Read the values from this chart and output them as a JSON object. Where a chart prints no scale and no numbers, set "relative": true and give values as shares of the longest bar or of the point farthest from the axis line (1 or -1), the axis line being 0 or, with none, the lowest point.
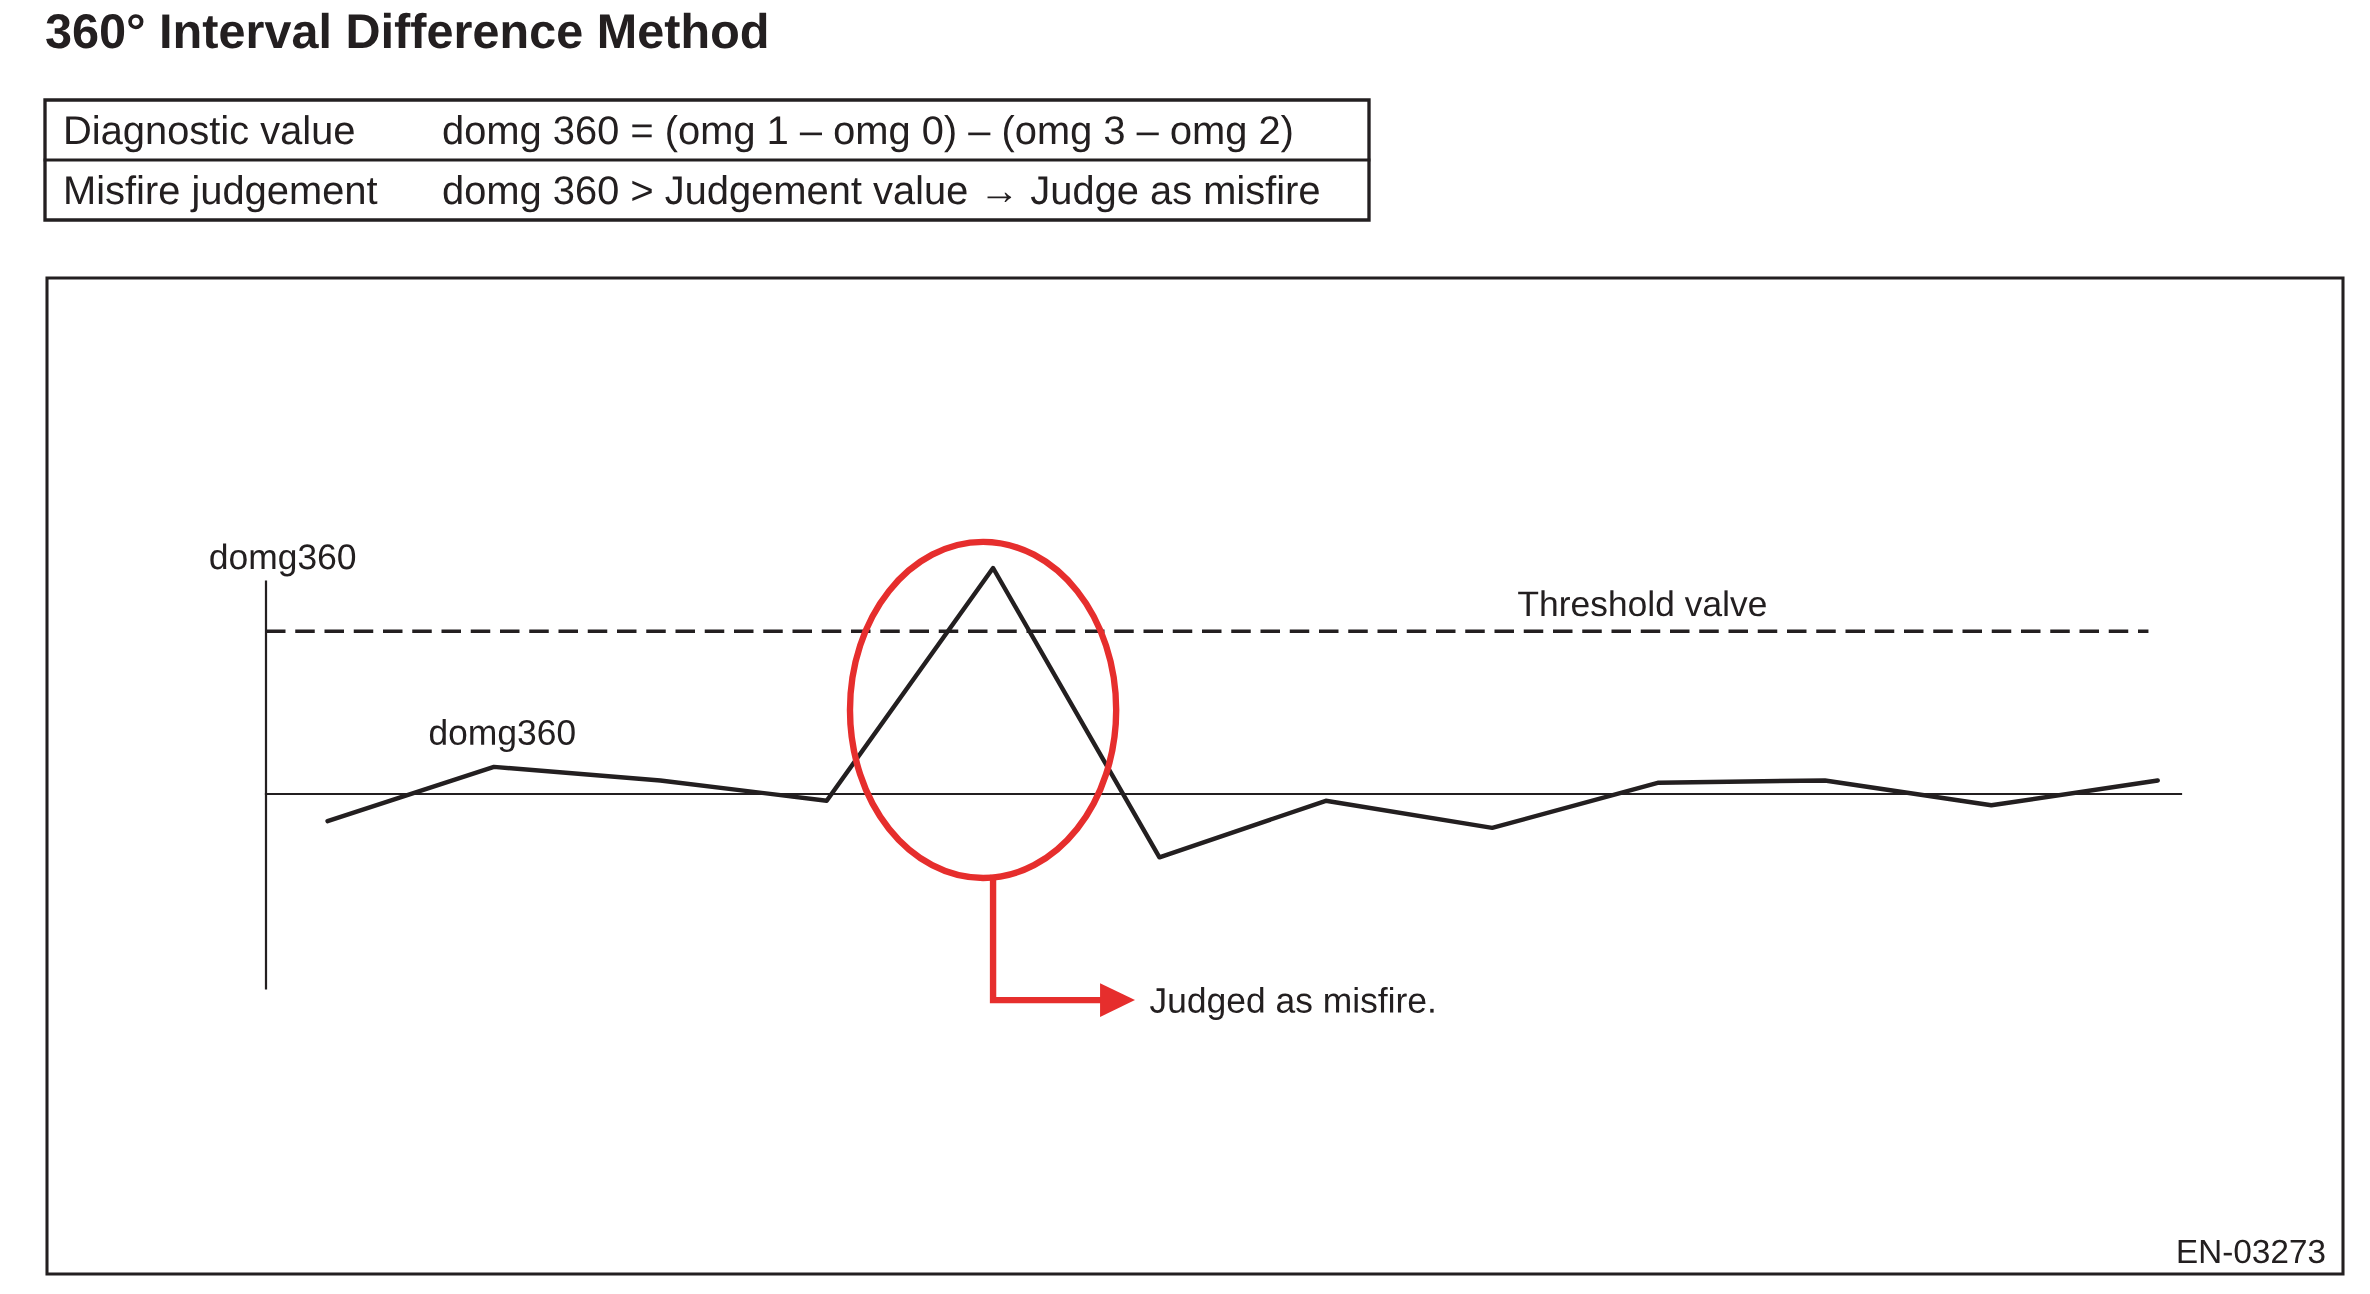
{
  "chart_data": {
    "type": "line",
    "title": "360° Interval Difference Method",
    "ylabel": "domg360",
    "annotations": [
      "Diagnostic value",
      "domg 360 = (omg 1 – omg 0) – (omg 3 – omg 2)",
      "Misfire judgement",
      "domg 360 > Judgement value → Judge as misfire",
      "Judged as misfire.",
      "EN-03273"
    ],
    "categories": [
      null,
      null,
      null,
      null,
      null,
      null,
      null,
      null,
      null,
      null,
      null,
      null
    ],
    "series": [
      {
        "name": "domg360",
        "color": "#231f20",
        "values": [
          -0.12,
          0.12,
          0.06,
          -0.03,
          1,
          -0.28,
          -0.03,
          -0.15,
          0.05,
          0.06,
          -0.05,
          0.06
        ]
      }
    ],
    "relative": true,
    "ref_lines": [
      {
        "axis": "y",
        "value": 0.72,
        "label": "Threshold valve",
        "color": "#231f20",
        "line_style": "dashed"
      }
    ],
    "line_style": "solid"
  }
}
